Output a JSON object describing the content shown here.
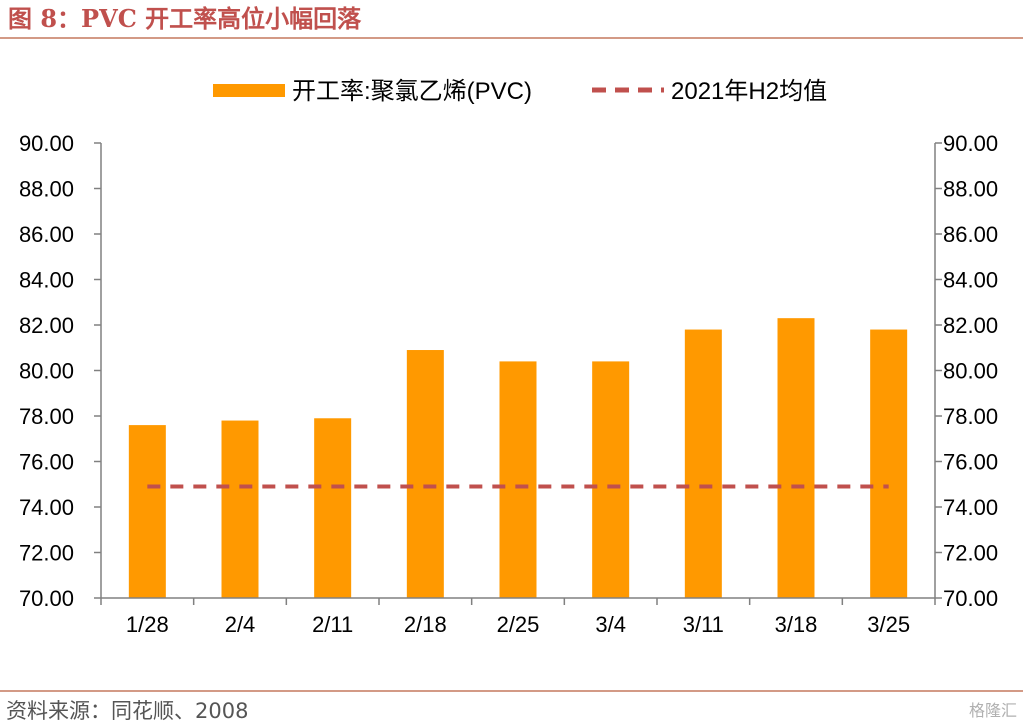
{
  "figure_title": "图 8：PVC 开工率高位小幅回落",
  "source": "资料来源：同花顺、2008",
  "watermark": "格隆汇",
  "colors": {
    "bar": "#ff9900",
    "avg_line": "#c0504d",
    "title": "#c0504d",
    "axis": "#808080"
  },
  "chart_data": {
    "type": "bar",
    "categories": [
      "1/28",
      "2/4",
      "2/11",
      "2/18",
      "2/25",
      "3/4",
      "3/11",
      "3/18",
      "3/25"
    ],
    "series": [
      {
        "name": "开工率:聚氯乙烯(PVC)",
        "type": "bar",
        "values": [
          77.6,
          77.8,
          77.9,
          80.9,
          80.4,
          80.4,
          81.8,
          82.3,
          81.8
        ]
      },
      {
        "name": "2021年H2均值",
        "type": "line",
        "style": "dashed",
        "values": [
          74.9,
          74.9,
          74.9,
          74.9,
          74.9,
          74.9,
          74.9,
          74.9,
          74.9
        ]
      }
    ],
    "ylim": [
      70,
      90
    ],
    "yticks": [
      "70.00",
      "72.00",
      "74.00",
      "76.00",
      "78.00",
      "80.00",
      "82.00",
      "84.00",
      "86.00",
      "88.00",
      "90.00"
    ],
    "y2ticks": [
      "70.00",
      "72.00",
      "74.00",
      "76.00",
      "78.00",
      "80.00",
      "82.00",
      "84.00",
      "86.00",
      "88.00",
      "90.00"
    ],
    "legend_position": "top",
    "grid": false
  }
}
